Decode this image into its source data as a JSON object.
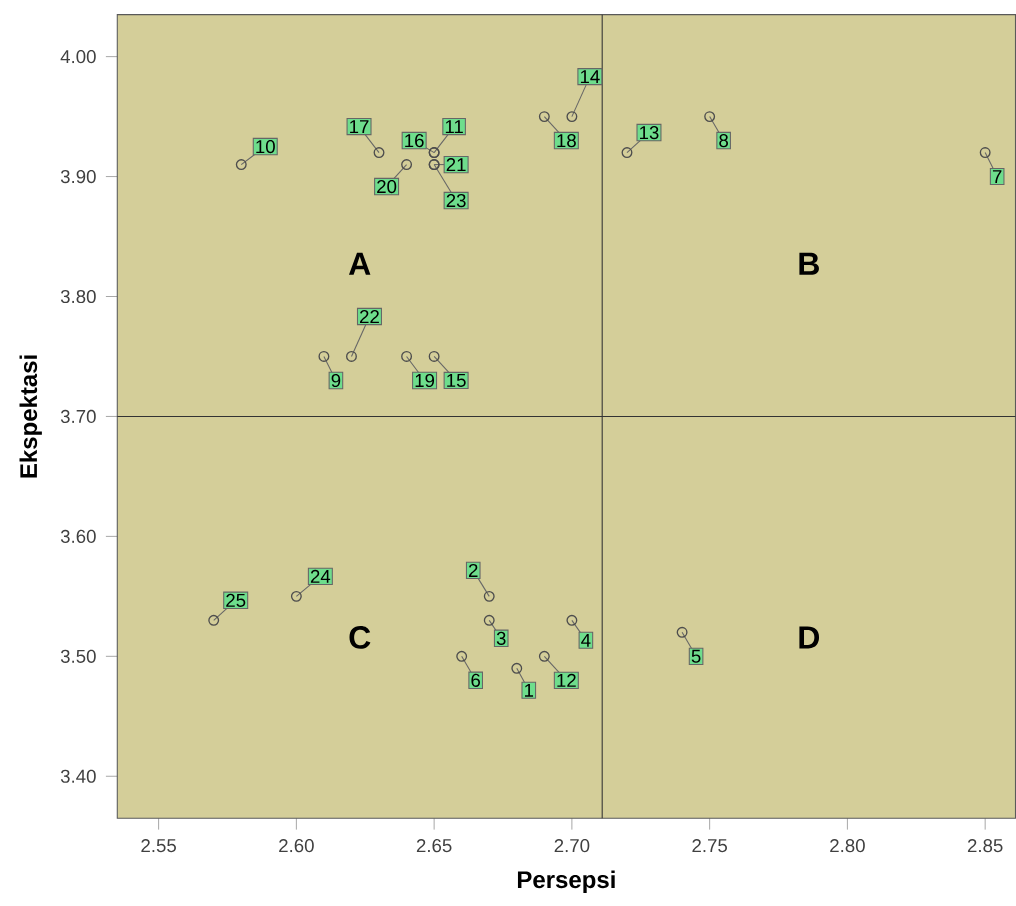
{
  "chart_data": {
    "type": "scatter",
    "xlabel": "Persepsi",
    "ylabel": "Ekspektasi",
    "x": [
      2.68,
      2.67,
      2.67,
      2.7,
      2.74,
      2.66,
      2.85,
      2.75,
      2.61,
      2.58,
      2.65,
      2.69,
      2.72,
      2.7,
      2.65,
      2.65,
      2.63,
      2.69,
      2.64,
      2.64,
      2.65,
      2.62,
      2.65,
      2.6,
      2.57
    ],
    "values": [
      3.49,
      3.55,
      3.53,
      3.53,
      3.52,
      3.5,
      3.92,
      3.95,
      3.75,
      3.91,
      3.92,
      3.5,
      3.92,
      3.95,
      3.75,
      3.92,
      3.92,
      3.95,
      3.75,
      3.91,
      3.91,
      3.75,
      3.91,
      3.55,
      3.53
    ],
    "color": "#4d4d4d",
    "marker": "circle",
    "xlim": [
      2.535,
      2.861
    ],
    "ylim": [
      3.365,
      4.035
    ],
    "xticks": [
      {
        "value": 2.55,
        "label": "2.55"
      },
      {
        "value": 2.6,
        "label": "2.60"
      },
      {
        "value": 2.65,
        "label": "2.65"
      },
      {
        "value": 2.7,
        "label": "2.70"
      },
      {
        "value": 2.75,
        "label": "2.75"
      },
      {
        "value": 2.8,
        "label": "2.80"
      },
      {
        "value": 2.85,
        "label": "2.85"
      }
    ],
    "yticks": [
      {
        "value": 3.4,
        "label": "3.40"
      },
      {
        "value": 3.5,
        "label": "3.50"
      },
      {
        "value": 3.6,
        "label": "3.60"
      },
      {
        "value": 3.7,
        "label": "3.70"
      },
      {
        "value": 3.8,
        "label": "3.80"
      },
      {
        "value": 3.9,
        "label": "3.90"
      },
      {
        "value": 4.0,
        "label": "4.00"
      }
    ],
    "ref_lines": [
      {
        "axis": "x",
        "value": 2.711
      },
      {
        "axis": "y",
        "value": 3.7
      }
    ],
    "annotations": [
      {
        "text": "1",
        "x": 2.68,
        "y": 3.49
      },
      {
        "text": "2",
        "x": 2.67,
        "y": 3.55
      },
      {
        "text": "3",
        "x": 2.67,
        "y": 3.53
      },
      {
        "text": "4",
        "x": 2.7,
        "y": 3.53
      },
      {
        "text": "5",
        "x": 2.74,
        "y": 3.52
      },
      {
        "text": "6",
        "x": 2.66,
        "y": 3.5
      },
      {
        "text": "7",
        "x": 2.85,
        "y": 3.92
      },
      {
        "text": "8",
        "x": 2.75,
        "y": 3.95
      },
      {
        "text": "9",
        "x": 2.61,
        "y": 3.75
      },
      {
        "text": "10",
        "x": 2.58,
        "y": 3.91
      },
      {
        "text": "11",
        "x": 2.65,
        "y": 3.92
      },
      {
        "text": "12",
        "x": 2.69,
        "y": 3.5
      },
      {
        "text": "13",
        "x": 2.72,
        "y": 3.92
      },
      {
        "text": "14",
        "x": 2.7,
        "y": 3.95
      },
      {
        "text": "15",
        "x": 2.65,
        "y": 3.75
      },
      {
        "text": "16",
        "x": 2.65,
        "y": 3.92
      },
      {
        "text": "17",
        "x": 2.63,
        "y": 3.92
      },
      {
        "text": "18",
        "x": 2.69,
        "y": 3.95
      },
      {
        "text": "19",
        "x": 2.64,
        "y": 3.75
      },
      {
        "text": "20",
        "x": 2.64,
        "y": 3.91
      },
      {
        "text": "21",
        "x": 2.65,
        "y": 3.91
      },
      {
        "text": "22",
        "x": 2.62,
        "y": 3.75
      },
      {
        "text": "23",
        "x": 2.65,
        "y": 3.91
      },
      {
        "text": "24",
        "x": 2.6,
        "y": 3.55
      },
      {
        "text": "25",
        "x": 2.57,
        "y": 3.53
      },
      "A",
      "B",
      "C",
      "D"
    ]
  }
}
